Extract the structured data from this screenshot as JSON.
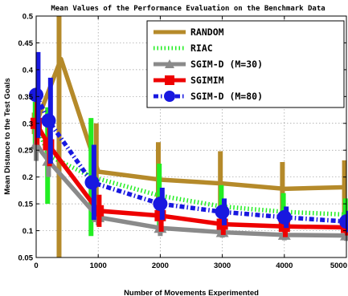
{
  "chart_data": {
    "type": "line",
    "title": "Mean Values of the  Performance Evaluation on the Benchmark Data",
    "xlabel": "Number of Movements Experimented",
    "ylabel": "Mean Distance to the Test Goals",
    "xlim": [
      0,
      5000
    ],
    "ylim": [
      0.05,
      0.5
    ],
    "xticks": [
      "0",
      "1000",
      "2000",
      "3000",
      "4000",
      "5000"
    ],
    "yticks": [
      "0.05",
      "0.1",
      "0.15",
      "0.2",
      "0.25",
      "0.3",
      "0.35",
      "0.4",
      "0.45",
      "0.5"
    ],
    "grid": true,
    "legend_position": "top-right",
    "series": [
      {
        "name": "RANDOM",
        "color": "#b58a2a",
        "style": "solid",
        "x": [
          0,
          400,
          1000,
          2000,
          3000,
          4000,
          5000
        ],
        "y": [
          0.3,
          0.42,
          0.21,
          0.195,
          0.188,
          0.178,
          0.181
        ],
        "err": [
          0.02,
          0.38,
          0.09,
          0.07,
          0.06,
          0.05,
          0.05
        ]
      },
      {
        "name": "RIAC",
        "color": "#22ee22",
        "style": "dotted",
        "x": [
          0,
          200,
          900,
          2000,
          3000,
          4000,
          5000
        ],
        "y": [
          0.3,
          0.24,
          0.2,
          0.165,
          0.145,
          0.135,
          0.13
        ],
        "err": [
          0.04,
          0.09,
          0.11,
          0.06,
          0.04,
          0.035,
          0.03
        ]
      },
      {
        "name": "SGIM-D (M=30)",
        "color": "#8a8a8a",
        "style": "solid",
        "x": [
          0,
          200,
          1000,
          2000,
          3000,
          4000,
          5000
        ],
        "y": [
          0.26,
          0.23,
          0.125,
          0.105,
          0.097,
          0.092,
          0.091
        ],
        "err": [
          0.03,
          0.03,
          0.015,
          0.015,
          0.01,
          0.01,
          0.01
        ]
      },
      {
        "name": "SGIMIM",
        "color": "#ee0000",
        "style": "solid",
        "x": [
          0,
          200,
          1000,
          2000,
          3000,
          4000,
          5000
        ],
        "y": [
          0.3,
          0.26,
          0.137,
          0.128,
          0.112,
          0.108,
          0.106
        ],
        "err": [
          0.04,
          0.04,
          0.03,
          0.03,
          0.02,
          0.02,
          0.015
        ]
      },
      {
        "name": "SGIM-D (M=80)",
        "color": "#1818e0",
        "style": "dashdot",
        "x": [
          0,
          200,
          900,
          2000,
          3000,
          4000,
          5000
        ],
        "y": [
          0.353,
          0.305,
          0.19,
          0.15,
          0.135,
          0.125,
          0.117
        ],
        "err": [
          0.08,
          0.08,
          0.07,
          0.03,
          0.025,
          0.02,
          0.02
        ]
      }
    ]
  }
}
